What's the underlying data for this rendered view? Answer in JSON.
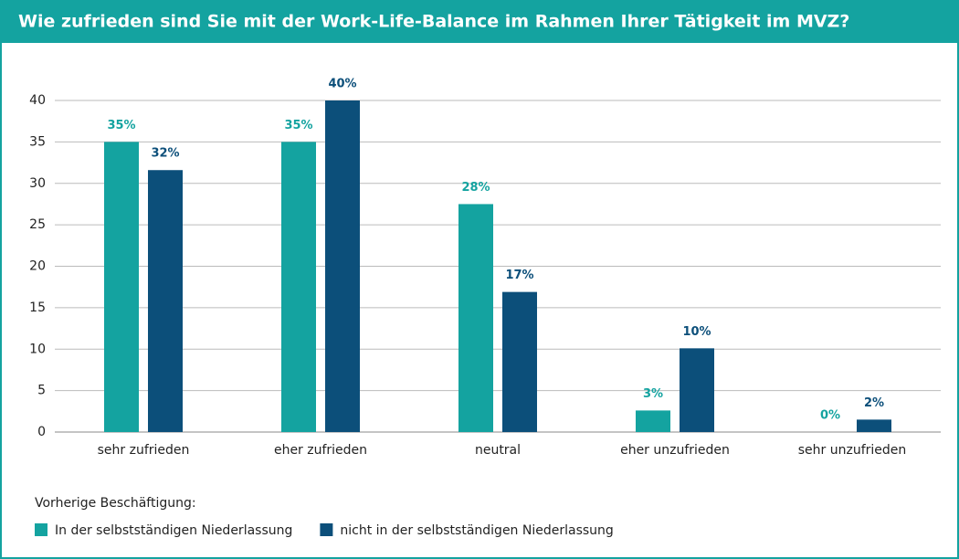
{
  "chart_data": {
    "type": "bar",
    "title": "Wie zufrieden sind Sie mit der Work-Life-Balance im Rahmen Ihrer Tätigkeit im MVZ?",
    "categories": [
      "sehr zufrieden",
      "eher zufrieden",
      "neutral",
      "eher unzufrieden",
      "sehr unzufrieden"
    ],
    "series": [
      {
        "name": "In der selbstständigen Niederlassung",
        "color": "#14a3a0",
        "values": [
          35,
          35,
          27.5,
          2.6,
          0
        ],
        "value_labels": [
          "35%",
          "35%",
          "28%",
          "3%",
          "0%"
        ]
      },
      {
        "name": "nicht in der selbstständigen Niederlassung",
        "color": "#0c4f7a",
        "values": [
          31.6,
          40,
          16.9,
          10.1,
          1.5
        ],
        "value_labels": [
          "32%",
          "40%",
          "17%",
          "10%",
          "2%"
        ]
      }
    ],
    "legend_title": "Vorherige Beschäftigung:",
    "ylim": [
      0,
      40
    ],
    "yticks": [
      0,
      5,
      10,
      15,
      20,
      25,
      30,
      35,
      40
    ],
    "grid": true
  }
}
